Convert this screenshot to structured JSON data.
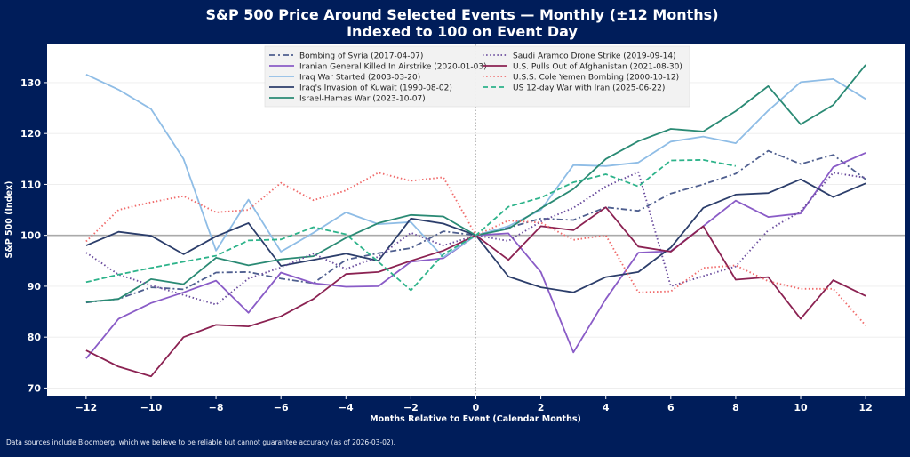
{
  "chart_data": {
    "type": "line",
    "title": "S&P 500 Price Around Selected Events — Monthly (±12 Months)",
    "subtitle": "Indexed to 100 on Event Day",
    "xlabel": "Months Relative to Event (Calendar Months)",
    "ylabel": "S&P 500 (Index)",
    "xlim": [
      -13.2,
      13.2
    ],
    "ylim": [
      68.5,
      137.5
    ],
    "xticks": [
      -12,
      -10,
      -8,
      -6,
      -4,
      -2,
      0,
      2,
      4,
      6,
      8,
      10,
      12
    ],
    "yticks": [
      70,
      80,
      90,
      100,
      110,
      120,
      130
    ],
    "grid": true,
    "reference_line_y": 100,
    "reference_line_x": 0,
    "legend_position": "top-center",
    "x": [
      -12,
      -11,
      -10,
      -9,
      -8,
      -7,
      -6,
      -5,
      -4,
      -3,
      -2,
      -1,
      0,
      1,
      2,
      3,
      4,
      5,
      6,
      7,
      8,
      9,
      10,
      11,
      12
    ],
    "series": [
      {
        "name": "Bombing of Syria (2017-04-07)",
        "color": "#4f5f8f",
        "style": "dashdot",
        "values": [
          86.8,
          87.5,
          89.8,
          89.4,
          92.7,
          92.8,
          91.5,
          90.6,
          95.2,
          96.5,
          97.5,
          100.8,
          100,
          101.5,
          103.3,
          103.0,
          105.5,
          104.8,
          108.2,
          110.0,
          112.1,
          116.6,
          114.0,
          115.8,
          111.0
        ]
      },
      {
        "name": "Iranian General Killed In Airstrike (2020-01-03)",
        "color": "#8a5cc7",
        "style": "solid",
        "values": [
          75.8,
          83.6,
          86.7,
          88.8,
          91.1,
          84.8,
          92.7,
          90.6,
          89.9,
          90.0,
          94.8,
          95.5,
          100,
          100.4,
          92.8,
          77.0,
          87.5,
          96.6,
          96.9,
          101.8,
          106.8,
          103.6,
          104.3,
          113.4,
          116.2
        ]
      },
      {
        "name": "Iraq War Started (2003-03-20)",
        "color": "#8fbde6",
        "style": "solid",
        "values": [
          131.6,
          128.6,
          124.8,
          115.0,
          97.0,
          107.0,
          96.8,
          100.5,
          104.5,
          102.2,
          102.6,
          95.7,
          100,
          101.8,
          105.0,
          113.8,
          113.6,
          114.3,
          118.4,
          119.4,
          118.1,
          124.5,
          130.1,
          130.7,
          126.8
        ]
      },
      {
        "name": "Iraq's Invasion of Kuwait (1990-08-02)",
        "color": "#2c3e6b",
        "style": "solid",
        "values": [
          98.0,
          100.7,
          99.9,
          96.3,
          99.8,
          102.4,
          94.0,
          95.2,
          96.4,
          95.0,
          103.3,
          102.3,
          100,
          91.9,
          89.8,
          88.8,
          91.8,
          92.8,
          97.6,
          105.4,
          108.0,
          108.3,
          111.0,
          107.5,
          110.2
        ]
      },
      {
        "name": "Israel-Hamas War (2023-10-07)",
        "color": "#2a8a74",
        "style": "solid",
        "values": [
          86.9,
          87.5,
          91.4,
          90.4,
          95.6,
          94.1,
          95.3,
          95.9,
          99.5,
          102.4,
          104.0,
          103.7,
          100,
          101.3,
          105.3,
          109.1,
          115.0,
          118.5,
          120.9,
          120.4,
          124.4,
          129.3,
          121.8,
          125.6,
          133.5
        ]
      },
      {
        "name": "Saudi Aramco Drone Strike (2019-09-14)",
        "color": "#6b4d9e",
        "style": "dotted",
        "values": [
          96.6,
          92.3,
          90.2,
          88.3,
          86.4,
          91.5,
          93.7,
          96.4,
          93.4,
          95.8,
          100.5,
          98.0,
          100,
          98.9,
          102.7,
          105.4,
          109.6,
          112.4,
          90.0,
          92.0,
          93.9,
          101.0,
          104.7,
          112.3,
          111.3
        ]
      },
      {
        "name": "U.S. Pulls Out of Afghanistan (2021-08-30)",
        "color": "#8b2252",
        "style": "solid",
        "values": [
          77.4,
          74.2,
          72.3,
          80.0,
          82.4,
          82.1,
          84.1,
          87.5,
          92.4,
          92.8,
          95.0,
          97.0,
          100,
          95.2,
          101.8,
          101.0,
          105.5,
          97.8,
          96.8,
          101.8,
          91.3,
          91.8,
          83.6,
          91.2,
          88.1
        ]
      },
      {
        "name": "U.S.S. Cole Yemen Bombing (2000-10-12)",
        "color": "#f06b6b",
        "style": "dotted",
        "values": [
          98.8,
          105.0,
          106.5,
          107.7,
          104.5,
          105.0,
          110.3,
          106.9,
          108.8,
          112.3,
          110.7,
          111.4,
          100,
          102.9,
          102.5,
          99.1,
          100.0,
          88.8,
          89.0,
          93.6,
          94.1,
          91.0,
          89.5,
          89.5,
          82.3
        ]
      },
      {
        "name": "US 12-day War with Iran (2025-06-22)",
        "color": "#2db38a",
        "style": "dashed",
        "values": [
          90.8,
          92.3,
          93.6,
          94.8,
          96.0,
          99.0,
          99.2,
          101.6,
          100.2,
          94.8,
          89.2,
          96.3,
          100,
          105.6,
          107.4,
          110.4,
          112.0,
          109.6,
          114.7,
          114.8,
          113.6,
          null,
          null,
          null,
          null
        ]
      }
    ]
  },
  "footer": "Data sources include Bloomberg, which we believe to be reliable but cannot guarantee accuracy (as of 2026-03-02).",
  "colors": {
    "background": "#001d5a",
    "plot_background": "#ffffff",
    "text": "#ffffff"
  }
}
